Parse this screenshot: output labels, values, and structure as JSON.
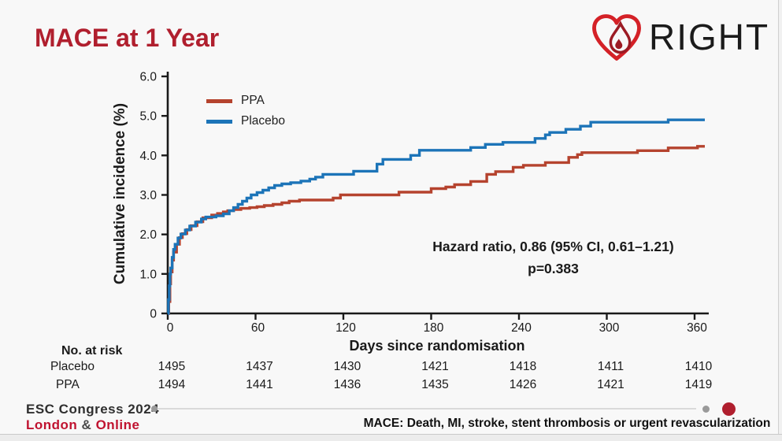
{
  "title": "MACE at 1 Year",
  "logo": {
    "text": "RIGHT",
    "heart_color": "#d42127",
    "drop_color": "#9c1b24"
  },
  "chart_data": {
    "type": "line",
    "subtype": "step-after-cumulative-incidence",
    "xlabel": "Days since randomisation",
    "ylabel": "Cumulative incidence (%)",
    "xlim": [
      0,
      360
    ],
    "ylim": [
      0,
      6
    ],
    "xticks": [
      0,
      60,
      120,
      180,
      240,
      300,
      360
    ],
    "ytick_values": [
      0,
      1,
      2,
      3,
      4,
      5,
      6
    ],
    "ytick_labels": [
      "0",
      "1.0",
      "2.0",
      "3.0",
      "4.0",
      "5.0",
      "6.0"
    ],
    "grid": false,
    "legend_position": "upper-left-inside",
    "series": [
      {
        "name": "PPA",
        "color": "#b5432e",
        "points": [
          [
            0,
            0
          ],
          [
            0.7,
            0.3
          ],
          [
            1.5,
            0.75
          ],
          [
            2,
            1.05
          ],
          [
            3,
            1.35
          ],
          [
            4,
            1.55
          ],
          [
            6,
            1.75
          ],
          [
            8,
            1.92
          ],
          [
            10,
            2.02
          ],
          [
            13,
            2.12
          ],
          [
            16,
            2.22
          ],
          [
            20,
            2.32
          ],
          [
            24,
            2.42
          ],
          [
            30,
            2.49
          ],
          [
            34,
            2.53
          ],
          [
            38,
            2.57
          ],
          [
            41,
            2.6
          ],
          [
            45,
            2.63
          ],
          [
            50,
            2.66
          ],
          [
            56,
            2.68
          ],
          [
            61,
            2.7
          ],
          [
            66,
            2.73
          ],
          [
            72,
            2.76
          ],
          [
            78,
            2.8
          ],
          [
            83,
            2.84
          ],
          [
            90,
            2.87
          ],
          [
            113,
            2.92
          ],
          [
            118,
            3.0
          ],
          [
            158,
            3.07
          ],
          [
            180,
            3.16
          ],
          [
            190,
            3.2
          ],
          [
            196,
            3.26
          ],
          [
            207,
            3.34
          ],
          [
            218,
            3.52
          ],
          [
            224,
            3.59
          ],
          [
            236,
            3.7
          ],
          [
            243,
            3.75
          ],
          [
            258,
            3.82
          ],
          [
            274,
            3.95
          ],
          [
            280,
            4.02
          ],
          [
            283,
            4.07
          ],
          [
            321,
            4.12
          ],
          [
            342,
            4.19
          ],
          [
            362,
            4.23
          ],
          [
            367,
            4.23
          ]
        ]
      },
      {
        "name": "Placebo",
        "color": "#1c74b8",
        "points": [
          [
            0,
            0
          ],
          [
            0.5,
            0.35
          ],
          [
            1,
            0.7
          ],
          [
            1.5,
            1.0
          ],
          [
            2,
            1.15
          ],
          [
            3,
            1.42
          ],
          [
            4,
            1.62
          ],
          [
            5,
            1.75
          ],
          [
            7,
            1.91
          ],
          [
            9,
            2.01
          ],
          [
            12,
            2.11
          ],
          [
            15,
            2.21
          ],
          [
            19,
            2.31
          ],
          [
            23,
            2.39
          ],
          [
            26,
            2.44
          ],
          [
            33,
            2.47
          ],
          [
            38,
            2.52
          ],
          [
            42,
            2.6
          ],
          [
            45,
            2.68
          ],
          [
            48,
            2.76
          ],
          [
            51,
            2.84
          ],
          [
            54,
            2.92
          ],
          [
            57,
            3.0
          ],
          [
            61,
            3.06
          ],
          [
            65,
            3.12
          ],
          [
            69,
            3.18
          ],
          [
            73,
            3.24
          ],
          [
            78,
            3.28
          ],
          [
            84,
            3.31
          ],
          [
            91,
            3.35
          ],
          [
            97,
            3.4
          ],
          [
            101,
            3.45
          ],
          [
            106,
            3.52
          ],
          [
            127,
            3.6
          ],
          [
            143,
            3.78
          ],
          [
            147,
            3.9
          ],
          [
            166,
            4.0
          ],
          [
            172,
            4.13
          ],
          [
            207,
            4.2
          ],
          [
            217,
            4.28
          ],
          [
            229,
            4.33
          ],
          [
            251,
            4.43
          ],
          [
            258,
            4.52
          ],
          [
            261,
            4.58
          ],
          [
            272,
            4.66
          ],
          [
            282,
            4.74
          ],
          [
            289,
            4.84
          ],
          [
            342,
            4.9
          ],
          [
            367,
            4.9
          ]
        ]
      }
    ],
    "annotations": [
      "Hazard ratio, 0.86 (95% CI, 0.61–1.21)",
      "p=0.383"
    ]
  },
  "annotation": {
    "line1": "Hazard ratio, 0.86 (95% CI, 0.61–1.21)",
    "line2": "p=0.383"
  },
  "at_risk": {
    "header": "No. at risk",
    "days": [
      0,
      60,
      120,
      180,
      240,
      300,
      360
    ],
    "rows": [
      {
        "label": "Placebo",
        "values": [
          "1495",
          "1437",
          "1430",
          "1421",
          "1418",
          "1411",
          "1410"
        ]
      },
      {
        "label": "PPA",
        "values": [
          "1494",
          "1441",
          "1436",
          "1435",
          "1426",
          "1421",
          "1419"
        ]
      }
    ]
  },
  "footer": {
    "congress": "ESC Congress 2024",
    "location_city": "London",
    "location_amp": "&",
    "location_mode": "Online",
    "definition": "MACE: Death, MI, stroke, stent thrombosis or urgent revascularization"
  }
}
